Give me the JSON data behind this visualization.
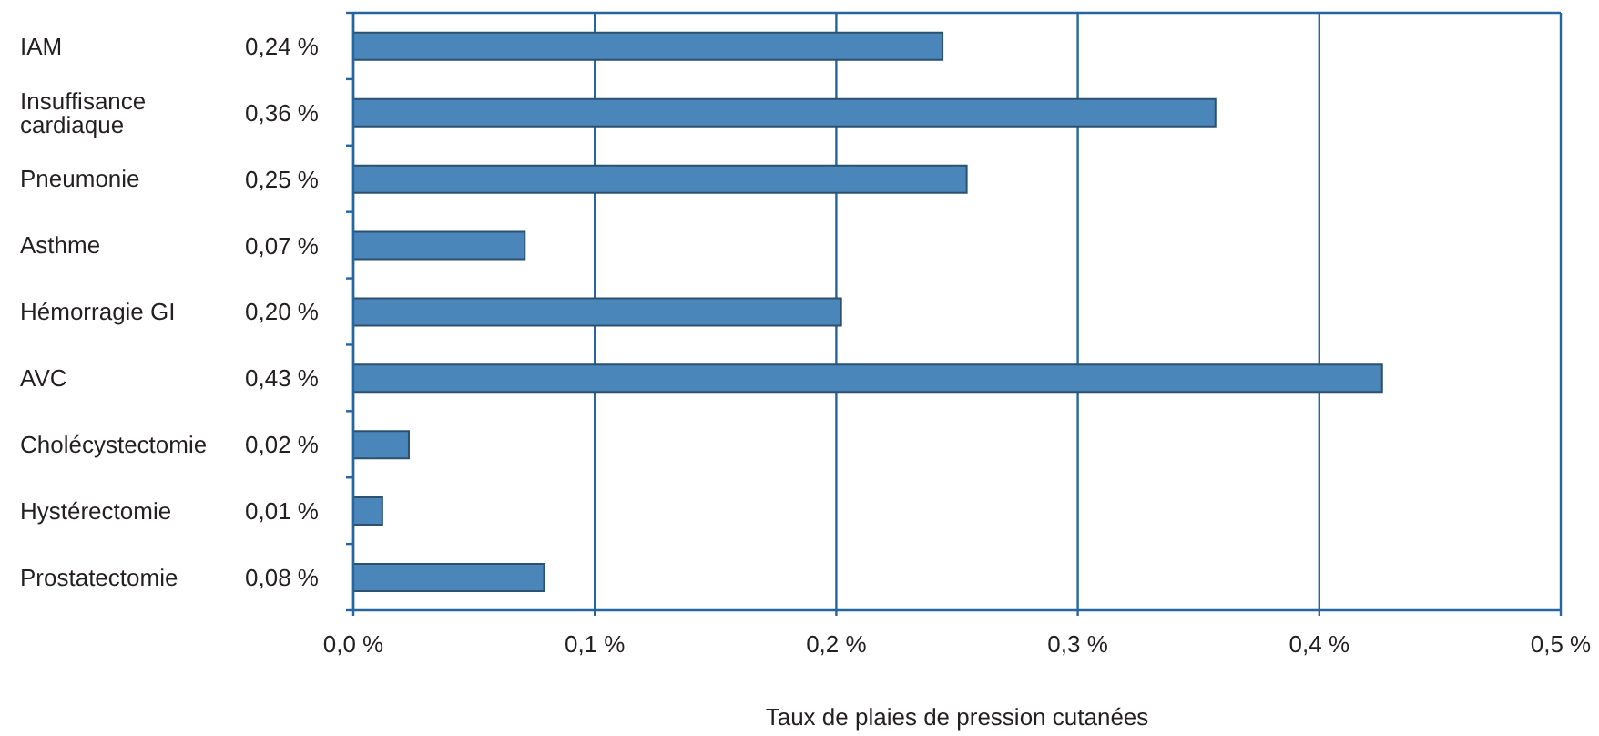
{
  "chart_data": {
    "type": "bar",
    "orientation": "horizontal",
    "xlabel": "Taux de plaies de pression cutanées",
    "categories": [
      "IAM",
      "Insuffisance cardiaque",
      "Pneumonie",
      "Asthme",
      "Hémorragie GI",
      "AVC",
      "Cholécystectomie",
      "Hystérectomie",
      "Prostatectomie"
    ],
    "values": [
      0.244,
      0.357,
      0.254,
      0.071,
      0.202,
      0.426,
      0.023,
      0.012,
      0.079
    ],
    "value_labels": [
      "0,24 %",
      "0,36 %",
      "0,25 %",
      "0,07 %",
      "0,20 %",
      "0,43 %",
      "0,02 %",
      "0,01 %",
      "0,08 %"
    ],
    "color": "#4a86b9",
    "xlim": [
      0,
      0.5
    ],
    "xticks": [
      {
        "value": 0,
        "label": "0,0 %"
      },
      {
        "value": 0.1,
        "label": "0,1 %"
      },
      {
        "value": 0.2,
        "label": "0,2 %"
      },
      {
        "value": 0.3,
        "label": "0,3 %"
      },
      {
        "value": 0.4,
        "label": "0,4 %"
      },
      {
        "value": 0.5,
        "label": "0,5 %"
      }
    ],
    "grid": "x"
  }
}
